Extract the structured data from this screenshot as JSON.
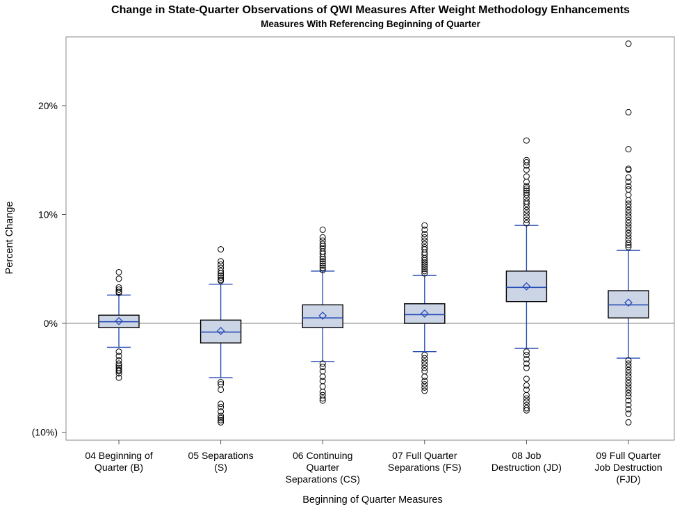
{
  "chart_data": {
    "type": "box",
    "title": "Change in State-Quarter Observations of QWI Measures After Weight Methodology Enhancements",
    "subtitle": "Measures With Referencing Beginning of Quarter",
    "xlabel": "Beginning of Quarter Measures",
    "ylabel": "Percent Change",
    "ylim": [
      -10.5,
      26.5
    ],
    "yticks": [
      {
        "value": -10,
        "label": "(10%)"
      },
      {
        "value": 0,
        "label": "0%"
      },
      {
        "value": 10,
        "label": "10%"
      },
      {
        "value": 20,
        "label": "20%"
      }
    ],
    "reference_line": 0,
    "grid": false,
    "colors": {
      "box_fill": "#cbd5e6",
      "box_edge": "#000000",
      "median": "#2a4db5",
      "whisker": "#2a4db5",
      "mean_marker": "#2a4db5",
      "outlier": "#000000",
      "reference": "#999999",
      "frame": "#888888"
    },
    "categories": [
      {
        "label": [
          "04 Beginning of",
          "Quarter (B)"
        ],
        "q1": -0.4,
        "median": 0.15,
        "q3": 0.75,
        "mean": 0.2,
        "whisker_low": -2.2,
        "whisker_high": 2.6,
        "outliers": [
          4.7,
          4.1,
          3.3,
          3.1,
          2.9,
          2.8,
          -2.6,
          -3.0,
          -3.4,
          -3.7,
          -3.9,
          -4.1,
          -4.3,
          -4.4,
          -4.6,
          -5.0
        ]
      },
      {
        "label": [
          "05 Separations",
          "(S)"
        ],
        "q1": -1.8,
        "median": -0.8,
        "q3": 0.3,
        "mean": -0.7,
        "whisker_low": -5.0,
        "whisker_high": 3.6,
        "outliers": [
          6.8,
          5.7,
          5.4,
          5.1,
          4.8,
          4.6,
          4.4,
          4.2,
          4.0,
          3.9,
          -5.4,
          -5.6,
          -6.1,
          -7.4,
          -7.7,
          -8.1,
          -8.5,
          -8.7,
          -8.9,
          -9.1
        ]
      },
      {
        "label": [
          "06 Continuing",
          "Quarter",
          "Separations (CS)"
        ],
        "q1": -0.4,
        "median": 0.5,
        "q3": 1.7,
        "mean": 0.7,
        "whisker_low": -3.5,
        "whisker_high": 4.8,
        "outliers": [
          8.6,
          7.9,
          7.6,
          7.3,
          7.1,
          6.9,
          6.6,
          6.4,
          6.1,
          5.9,
          5.7,
          5.5,
          5.3,
          5.1,
          4.9,
          -3.7,
          -4.0,
          -4.4,
          -4.9,
          -5.3,
          -5.8,
          -6.3,
          -6.6,
          -6.9,
          -7.1
        ]
      },
      {
        "label": [
          "07 Full Quarter",
          "Separations (FS)"
        ],
        "q1": 0.0,
        "median": 0.8,
        "q3": 1.8,
        "mean": 0.9,
        "whisker_low": -2.6,
        "whisker_high": 4.4,
        "outliers": [
          9.0,
          8.6,
          8.2,
          7.9,
          7.6,
          7.3,
          7.0,
          6.8,
          6.5,
          6.3,
          6.0,
          5.8,
          5.6,
          5.4,
          5.2,
          5.0,
          4.8,
          4.6,
          -2.9,
          -3.2,
          -3.5,
          -3.8,
          -4.1,
          -4.4,
          -4.9,
          -5.3,
          -5.6,
          -5.9,
          -6.2
        ]
      },
      {
        "label": [
          "08 Job",
          "Destruction (JD)"
        ],
        "q1": 2.0,
        "median": 3.3,
        "q3": 4.8,
        "mean": 3.4,
        "whisker_low": -2.3,
        "whisker_high": 9.0,
        "outliers": [
          16.8,
          15.0,
          14.8,
          14.5,
          14.1,
          13.5,
          13.0,
          12.6,
          12.4,
          12.2,
          12.0,
          11.8,
          11.5,
          11.2,
          11.0,
          10.7,
          10.4,
          10.1,
          9.8,
          9.5,
          9.2,
          -2.6,
          -2.9,
          -3.3,
          -3.7,
          -4.1,
          -5.1,
          -5.7,
          -6.1,
          -6.6,
          -6.9,
          -7.2,
          -7.5,
          -7.8,
          -8.0
        ]
      },
      {
        "label": [
          "09 Full Quarter",
          "Job Destruction",
          "(FJD)"
        ],
        "q1": 0.5,
        "median": 1.7,
        "q3": 3.0,
        "mean": 1.9,
        "whisker_low": -3.2,
        "whisker_high": 6.7,
        "outliers": [
          25.7,
          19.4,
          16.0,
          14.2,
          14.1,
          13.4,
          13.0,
          12.6,
          12.3,
          11.8,
          11.3,
          11.0,
          10.7,
          10.4,
          10.1,
          9.8,
          9.5,
          9.2,
          8.9,
          8.6,
          8.3,
          8.0,
          7.7,
          7.4,
          7.2,
          7.0,
          -3.4,
          -3.7,
          -4.0,
          -4.3,
          -4.6,
          -4.9,
          -5.2,
          -5.5,
          -5.8,
          -6.1,
          -6.4,
          -6.7,
          -7.1,
          -7.5,
          -7.9,
          -8.3,
          -9.1
        ]
      }
    ]
  }
}
